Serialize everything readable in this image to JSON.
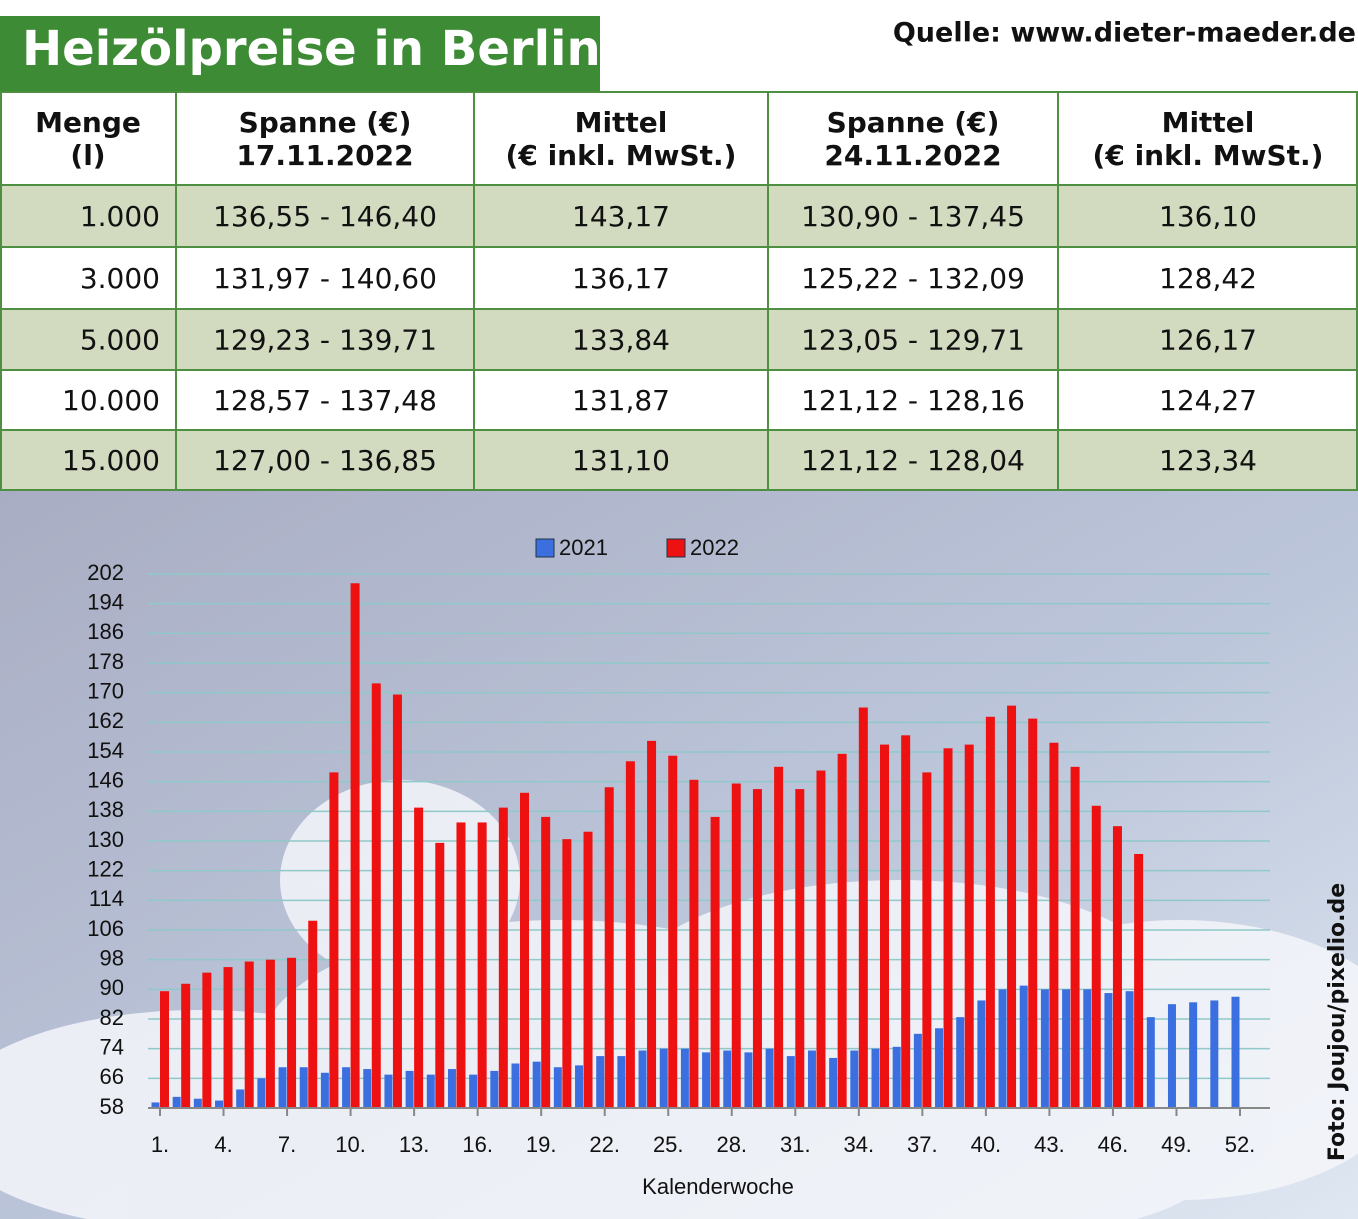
{
  "header": {
    "title": "Heizölpreise in Berlin",
    "source": "Quelle: www.dieter-maeder.de",
    "credit": "Foto: Joujou/pixelio.de"
  },
  "table": {
    "headers": [
      [
        "Menge",
        "(l)"
      ],
      [
        "Spanne (€)",
        "17.11.2022"
      ],
      [
        "Mittel",
        "(€ inkl. MwSt.)"
      ],
      [
        "Spanne (€)",
        "24.11.2022"
      ],
      [
        "Mittel",
        "(€ inkl. MwSt.)"
      ]
    ],
    "rows": [
      [
        "1.000",
        "136,55 - 146,40",
        "143,17",
        "130,90 - 137,45",
        "136,10"
      ],
      [
        "3.000",
        "131,97 - 140,60",
        "136,17",
        "125,22 - 132,09",
        "128,42"
      ],
      [
        "5.000",
        "129,23 - 139,71",
        "133,84",
        "123,05 - 129,71",
        "126,17"
      ],
      [
        "10.000",
        "128,57 - 137,48",
        "131,87",
        "121,12 - 128,16",
        "124,27"
      ],
      [
        "15.000",
        "127,00 - 136,85",
        "131,10",
        "121,12 - 128,04",
        "123,34"
      ]
    ]
  },
  "chart_data": {
    "type": "bar",
    "x_label": "Kalenderwoche",
    "categories": [
      "1.",
      null,
      null,
      "4.",
      null,
      null,
      "7.",
      null,
      null,
      "10.",
      null,
      null,
      "13.",
      null,
      null,
      "16.",
      null,
      null,
      "19.",
      null,
      null,
      "22.",
      null,
      null,
      "25.",
      null,
      null,
      "28.",
      null,
      null,
      "31.",
      null,
      null,
      "34.",
      null,
      null,
      "37.",
      null,
      null,
      "40.",
      null,
      null,
      "43.",
      null,
      null,
      "46.",
      null,
      null,
      "49.",
      null,
      null,
      "52."
    ],
    "series": [
      {
        "name": "2021",
        "color": "#3b6fe0",
        "values": [
          59.5,
          61,
          60.5,
          60,
          63,
          66,
          69,
          69,
          67.5,
          69,
          68.5,
          67,
          68,
          67,
          68.5,
          67,
          68,
          70,
          70.5,
          69,
          69.5,
          72,
          72,
          73.5,
          74,
          74,
          73,
          73.5,
          73,
          74,
          72,
          73.5,
          71.5,
          73.5,
          74,
          74.5,
          78,
          79.5,
          82.5,
          87,
          90,
          91,
          90,
          90,
          90,
          89,
          89.5,
          82.5,
          86,
          86.5,
          87,
          88
        ]
      },
      {
        "name": "2022",
        "color": "#ee1111",
        "values": [
          89.5,
          91.5,
          94.5,
          96,
          97.5,
          98,
          98.5,
          108.5,
          148.5,
          199.5,
          172.5,
          169.5,
          139,
          129.5,
          135,
          135,
          139,
          143,
          136.5,
          130.5,
          132.5,
          144.5,
          151.5,
          157,
          153,
          146.5,
          136.5,
          145.5,
          144,
          150,
          144,
          149,
          153.5,
          166,
          156,
          158.5,
          148.5,
          155,
          156,
          163.5,
          166.5,
          163,
          156.5,
          150,
          139.5,
          134,
          126.5,
          null,
          null,
          null,
          null,
          null
        ]
      }
    ],
    "ylim": [
      58,
      202
    ],
    "yticks": [
      58,
      66,
      74,
      82,
      90,
      98,
      106,
      114,
      122,
      130,
      138,
      146,
      154,
      162,
      170,
      178,
      186,
      194,
      202
    ],
    "grid": true,
    "legend": "top"
  }
}
